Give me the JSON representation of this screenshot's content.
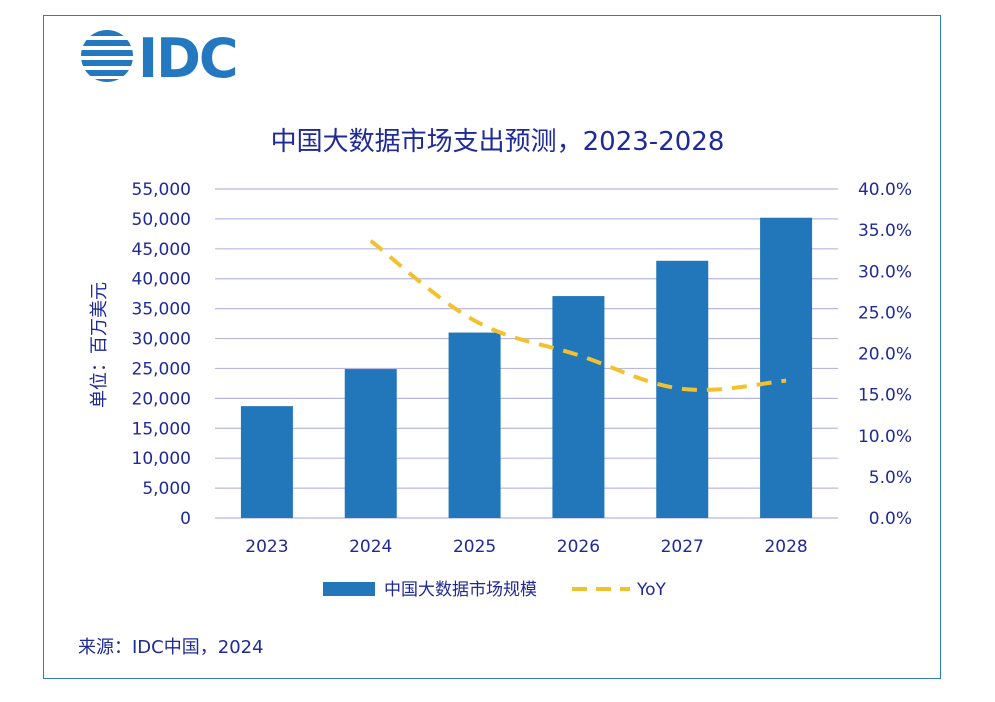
{
  "logo": {
    "text": "IDC",
    "color": "#2378c0"
  },
  "title": "中国大数据市场支出预测，2023-2028",
  "source": "来源：IDC中国，2024",
  "chart_data": {
    "type": "bar",
    "categories": [
      "2023",
      "2024",
      "2025",
      "2026",
      "2027",
      "2028"
    ],
    "series": [
      {
        "name": "中国大数据市场规模",
        "type": "bar",
        "axis": "left",
        "color": "#2277bb",
        "values": [
          18700,
          24900,
          31000,
          37100,
          43000,
          50200
        ]
      },
      {
        "name": "YoY",
        "type": "line",
        "style": "dashed",
        "axis": "right",
        "color": "#f2c12e",
        "values": [
          null,
          0.337,
          0.24,
          0.198,
          0.157,
          0.167
        ]
      }
    ],
    "ylabel": "单位：百万美元",
    "ylim": [
      0,
      55000
    ],
    "yticks": [
      "0",
      "5,000",
      "10,000",
      "15,000",
      "20,000",
      "25,000",
      "30,000",
      "35,000",
      "40,000",
      "45,000",
      "50,000",
      "55,000"
    ],
    "y2lim": [
      0,
      0.4
    ],
    "y2ticks": [
      "0.0%",
      "5.0%",
      "10.0%",
      "15.0%",
      "20.0%",
      "25.0%",
      "30.0%",
      "35.0%",
      "40.0%"
    ],
    "grid": true,
    "legend": "bottom-center",
    "gridColor": "#b8b8e8"
  }
}
